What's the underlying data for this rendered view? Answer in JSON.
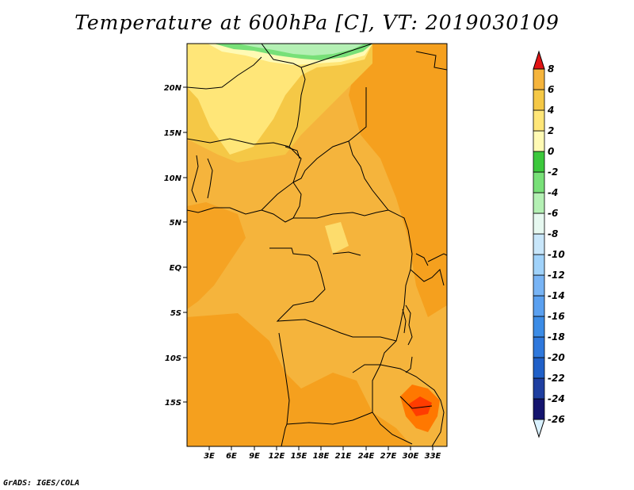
{
  "title": "Temperature at 600hPa [C], VT: 2019030109",
  "credit": "GrADS: IGES/COLA",
  "map": {
    "lat_labels": [
      "20N",
      "15N",
      "10N",
      "5N",
      "EQ",
      "5S",
      "10S",
      "15S"
    ],
    "lon_labels": [
      "3E",
      "6E",
      "9E",
      "12E",
      "15E",
      "18E",
      "21E",
      "24E",
      "27E",
      "30E",
      "33E"
    ]
  },
  "colorbar": {
    "labels": [
      "8",
      "6",
      "4",
      "2",
      "0",
      "-2",
      "-4",
      "-6",
      "-8",
      "-10",
      "-12",
      "-14",
      "-16",
      "-18",
      "-20",
      "-22",
      "-24",
      "-26"
    ],
    "colors": [
      "#d9f1ff",
      "#14146e",
      "#1f3fa0",
      "#2060c8",
      "#2f78dc",
      "#3c8ce6",
      "#5aa0f0",
      "#78b4f5",
      "#a0d2fa",
      "#c8e6fa",
      "#e6f8f0",
      "#b4f0b4",
      "#78e078",
      "#3cc83c",
      "#fffab4",
      "#ffe678",
      "#f5c846",
      "#f5b43c",
      "#f5a01e",
      "#ff7800",
      "#ff3c00",
      "#e11414"
    ]
  }
}
